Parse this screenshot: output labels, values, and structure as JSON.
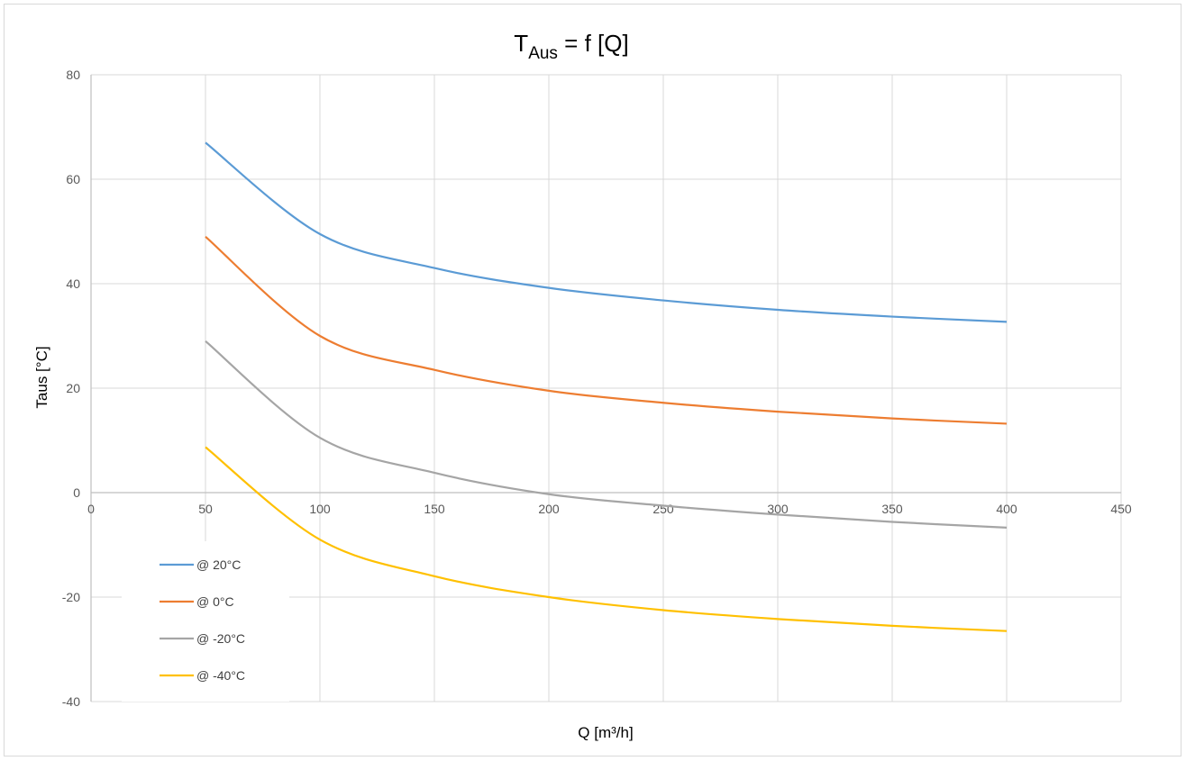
{
  "chart_data": {
    "type": "line",
    "title": {
      "main": "T",
      "subscript": "Aus",
      "rest": " = f [Q]"
    },
    "xlabel": "Q [m³/h]",
    "ylabel": "Taus [°C]",
    "xlim": [
      0,
      450
    ],
    "ylim": [
      -40,
      80
    ],
    "x_ticks": [
      0,
      50,
      100,
      150,
      200,
      250,
      300,
      350,
      400,
      450
    ],
    "y_ticks": [
      -40,
      -20,
      0,
      20,
      40,
      60,
      80
    ],
    "grid": true,
    "legend_position": "bottom-left",
    "series": [
      {
        "name": "@ 20°C",
        "color": "#5b9bd5",
        "x": [
          50,
          100,
          150,
          200,
          250,
          300,
          350,
          400
        ],
        "y": [
          67,
          49.5,
          43,
          39.2,
          36.8,
          35,
          33.7,
          32.7
        ]
      },
      {
        "name": "@ 0°C",
        "color": "#ed7d31",
        "x": [
          50,
          100,
          150,
          200,
          250,
          300,
          350,
          400
        ],
        "y": [
          49,
          30,
          23.5,
          19.5,
          17.2,
          15.5,
          14.2,
          13.2
        ]
      },
      {
        "name": "@ -20°C",
        "color": "#a5a5a5",
        "x": [
          50,
          100,
          150,
          200,
          250,
          300,
          350,
          400
        ],
        "y": [
          29,
          10.5,
          3.8,
          -0.3,
          -2.5,
          -4.2,
          -5.6,
          -6.7
        ]
      },
      {
        "name": "@ -40°C",
        "color": "#ffc000",
        "x": [
          50,
          100,
          150,
          200,
          250,
          300,
          350,
          400
        ],
        "y": [
          8.7,
          -9,
          -16,
          -20,
          -22.5,
          -24.2,
          -25.5,
          -26.5
        ]
      }
    ]
  }
}
